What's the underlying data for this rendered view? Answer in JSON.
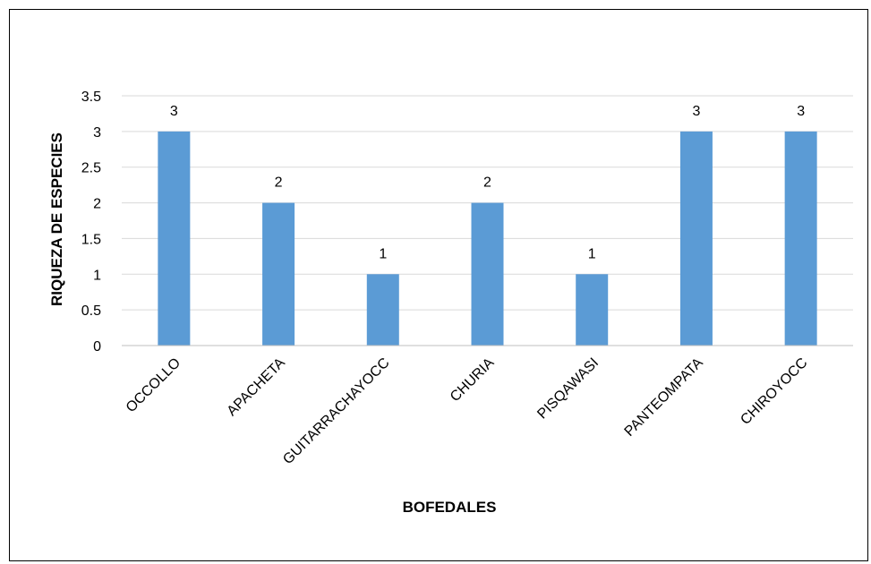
{
  "chart_data": {
    "type": "bar",
    "categories": [
      "OCCOLLO",
      "APACHETA",
      "GUITARRACHAYOCC",
      "CHURIA",
      "PISQAWASI",
      "PANTEOMPATA",
      "CHIROYOCC"
    ],
    "values": [
      3,
      2,
      1,
      2,
      1,
      3,
      3
    ],
    "data_labels": [
      "3",
      "2",
      "1",
      "2",
      "1",
      "3",
      "3"
    ],
    "xlabel": "BOFEDALES",
    "ylabel": "RIQUEZA DE ESPECIES",
    "ylim": [
      0,
      3.5
    ],
    "yticks": [
      0,
      0.5,
      1,
      1.5,
      2,
      2.5,
      3,
      3.5
    ],
    "ytick_labels": [
      "0",
      "0.5",
      "1",
      "1.5",
      "2",
      "2.5",
      "3",
      "3.5"
    ],
    "grid": true,
    "legend": "none",
    "colors": {
      "bar": "#5B9BD5",
      "grid": "#D9D9D9",
      "axis": "#BFBFBF",
      "text": "#000000"
    }
  }
}
